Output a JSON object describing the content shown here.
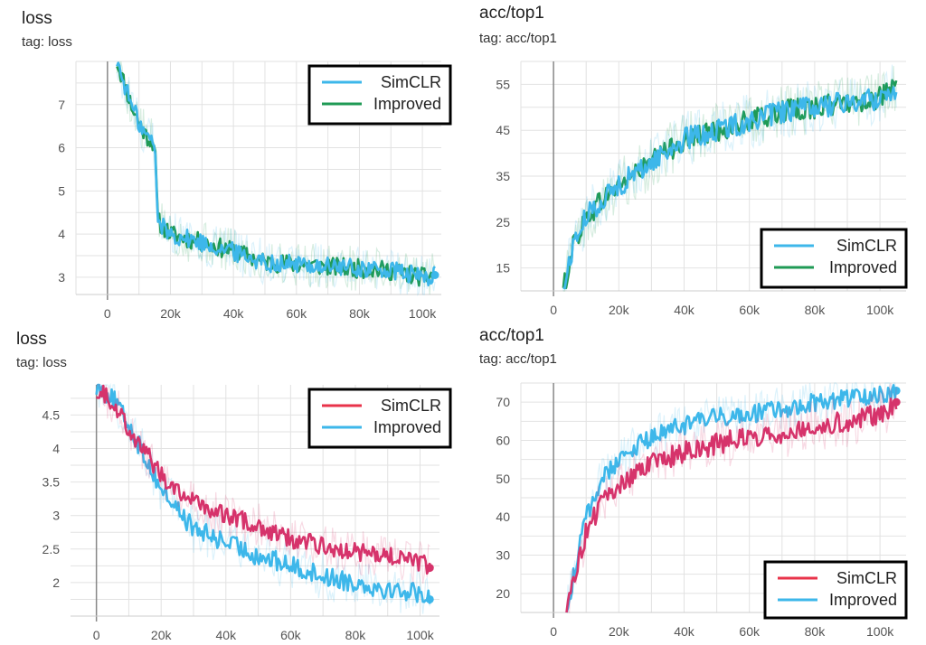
{
  "colors": {
    "simclr_blue": "#3db7ea",
    "improved_green": "#1f9a55",
    "simclr_red": "#e8334a",
    "red_line": "#d6336b",
    "grid": "#e2e2e2",
    "axis": "#888888"
  },
  "panels": [
    {
      "title": "loss",
      "tag": "tag: loss"
    },
    {
      "title": "acc/top1",
      "tag": "tag: acc/top1"
    },
    {
      "title": "loss",
      "tag": "tag: loss"
    },
    {
      "title": "acc/top1",
      "tag": "tag: acc/top1"
    }
  ],
  "chart_data": [
    {
      "type": "line",
      "title": "loss",
      "xlim": [
        -10000,
        106000
      ],
      "ylim": [
        2.6,
        8.0
      ],
      "xticks": [
        0,
        20000,
        40000,
        60000,
        80000,
        100000
      ],
      "xtick_labels": [
        "0",
        "20k",
        "40k",
        "60k",
        "80k",
        "100k"
      ],
      "yticks": [
        3,
        4,
        5,
        6,
        7
      ],
      "ytick_labels": [
        "3",
        "4",
        "5",
        "6",
        "7"
      ],
      "legend": {
        "position": "top-right",
        "entries": [
          {
            "label": "SimCLR",
            "color": "#3db7ea"
          },
          {
            "label": "Improved",
            "color": "#1f9a55"
          }
        ]
      },
      "series": [
        {
          "name": "SimCLR",
          "color": "#3db7ea",
          "top": true,
          "end_marker": true,
          "x": [
            3000,
            8000,
            12000,
            15000,
            16000,
            20000,
            30000,
            40000,
            50000,
            60000,
            70000,
            80000,
            90000,
            100000,
            104000
          ],
          "y": [
            8.0,
            6.9,
            6.3,
            6.1,
            4.3,
            4.0,
            3.8,
            3.6,
            3.35,
            3.3,
            3.25,
            3.2,
            3.15,
            3.0,
            3.05
          ],
          "noise": 0.22
        },
        {
          "name": "Improved",
          "color": "#1f9a55",
          "top": false,
          "end_marker": false,
          "x": [
            3000,
            8000,
            12000,
            15000,
            16000,
            20000,
            30000,
            40000,
            50000,
            60000,
            70000,
            80000,
            90000,
            100000,
            104000
          ],
          "y": [
            8.0,
            6.9,
            6.3,
            6.1,
            4.3,
            4.0,
            3.8,
            3.6,
            3.35,
            3.3,
            3.25,
            3.2,
            3.15,
            3.0,
            3.05
          ],
          "noise": 0.22
        }
      ]
    },
    {
      "type": "line",
      "title": "acc/top1",
      "xlim": [
        -10000,
        108000
      ],
      "ylim": [
        10,
        60
      ],
      "xticks": [
        0,
        20000,
        40000,
        60000,
        80000,
        100000
      ],
      "xtick_labels": [
        "0",
        "20k",
        "40k",
        "60k",
        "80k",
        "100k"
      ],
      "yticks": [
        15,
        25,
        35,
        45,
        55
      ],
      "ytick_labels": [
        "15",
        "25",
        "35",
        "45",
        "55"
      ],
      "legend": {
        "position": "bottom-right",
        "entries": [
          {
            "label": "SimCLR",
            "color": "#3db7ea"
          },
          {
            "label": "Improved",
            "color": "#1f9a55"
          }
        ]
      },
      "series": [
        {
          "name": "SimCLR",
          "color": "#3db7ea",
          "top": true,
          "end_marker": false,
          "x": [
            3000,
            6000,
            10000,
            15000,
            20000,
            30000,
            40000,
            50000,
            60000,
            70000,
            80000,
            90000,
            100000,
            105000
          ],
          "y": [
            10,
            20,
            26,
            30,
            33,
            38,
            43,
            45,
            47,
            49,
            50,
            51,
            52,
            54
          ],
          "noise": 2.5
        },
        {
          "name": "Improved",
          "color": "#1f9a55",
          "top": false,
          "end_marker": false,
          "x": [
            3000,
            6000,
            10000,
            15000,
            20000,
            30000,
            40000,
            50000,
            60000,
            70000,
            80000,
            90000,
            100000,
            105000
          ],
          "y": [
            10,
            20,
            26,
            30,
            33,
            38,
            43,
            45,
            47,
            49,
            50,
            51,
            52,
            54
          ],
          "noise": 2.5
        }
      ]
    },
    {
      "type": "line",
      "title": "loss",
      "xlim": [
        -8000,
        106000
      ],
      "ylim": [
        1.5,
        4.95
      ],
      "xticks": [
        0,
        20000,
        40000,
        60000,
        80000,
        100000
      ],
      "xtick_labels": [
        "0",
        "20k",
        "40k",
        "60k",
        "80k",
        "100k"
      ],
      "yticks": [
        2,
        2.5,
        3,
        3.5,
        4,
        4.5
      ],
      "ytick_labels": [
        "2",
        "2.5",
        "3",
        "3.5",
        "4",
        "4.5"
      ],
      "legend": {
        "position": "top-right",
        "entries": [
          {
            "label": "SimCLR",
            "color": "#e8334a"
          },
          {
            "label": "Improved",
            "color": "#3db7ea"
          }
        ]
      },
      "series": [
        {
          "name": "SimCLR",
          "color": "#d6336b",
          "top": true,
          "end_marker": true,
          "x": [
            0,
            5000,
            10000,
            20000,
            30000,
            40000,
            50000,
            60000,
            70000,
            80000,
            90000,
            100000,
            103000
          ],
          "y": [
            4.9,
            4.7,
            4.3,
            3.6,
            3.2,
            3.0,
            2.85,
            2.65,
            2.55,
            2.45,
            2.4,
            2.3,
            2.22
          ],
          "noise": 0.14
        },
        {
          "name": "Improved",
          "color": "#3db7ea",
          "top": false,
          "end_marker": true,
          "x": [
            0,
            5000,
            10000,
            20000,
            30000,
            40000,
            50000,
            60000,
            70000,
            80000,
            90000,
            100000,
            103000
          ],
          "y": [
            4.95,
            4.75,
            4.35,
            3.4,
            2.8,
            2.6,
            2.4,
            2.25,
            2.1,
            2.0,
            1.9,
            1.85,
            1.75
          ],
          "noise": 0.15
        }
      ]
    },
    {
      "type": "line",
      "title": "acc/top1",
      "xlim": [
        -10000,
        108000
      ],
      "ylim": [
        15,
        75
      ],
      "xticks": [
        0,
        20000,
        40000,
        60000,
        80000,
        100000
      ],
      "xtick_labels": [
        "0",
        "20k",
        "40k",
        "60k",
        "80k",
        "100k"
      ],
      "yticks": [
        20,
        30,
        40,
        50,
        60,
        70
      ],
      "ytick_labels": [
        "20",
        "30",
        "40",
        "50",
        "60",
        "70"
      ],
      "legend": {
        "position": "bottom-right",
        "entries": [
          {
            "label": "SimCLR",
            "color": "#e8334a"
          },
          {
            "label": "Improved",
            "color": "#3db7ea"
          }
        ]
      },
      "series": [
        {
          "name": "SimCLR",
          "color": "#d6336b",
          "top": true,
          "end_marker": true,
          "x": [
            4000,
            7000,
            10000,
            15000,
            20000,
            30000,
            40000,
            50000,
            60000,
            70000,
            80000,
            90000,
            100000,
            105000
          ],
          "y": [
            15,
            27,
            36,
            44,
            48,
            54,
            57,
            59,
            61,
            62,
            64,
            65,
            67,
            70
          ],
          "noise": 2.8
        },
        {
          "name": "Improved",
          "color": "#3db7ea",
          "top": false,
          "end_marker": true,
          "x": [
            4000,
            7000,
            10000,
            15000,
            20000,
            30000,
            40000,
            50000,
            60000,
            70000,
            80000,
            90000,
            100000,
            105000
          ],
          "y": [
            15,
            28,
            40,
            50,
            55,
            61,
            64,
            66,
            67,
            68,
            70,
            71,
            72,
            73
          ],
          "noise": 2.5
        }
      ]
    }
  ]
}
